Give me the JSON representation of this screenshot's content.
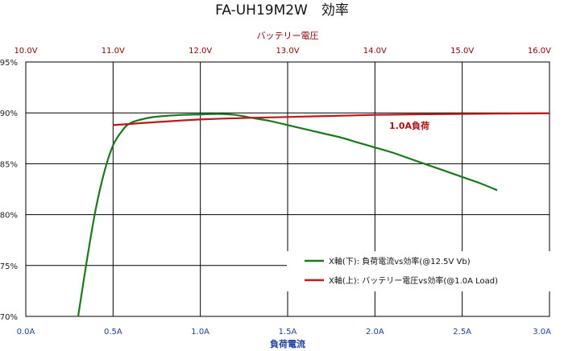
{
  "chart_data": {
    "type": "line",
    "title": "FA-UH19M2W　効率",
    "x_bottom": {
      "label": "負荷電流",
      "ticks": [
        "0.0A",
        "0.5A",
        "1.0A",
        "1.5A",
        "2.0A",
        "2.5A",
        "3.0A"
      ],
      "range": [
        0,
        3
      ]
    },
    "x_top": {
      "label": "バッテリー電圧",
      "ticks": [
        "10.0V",
        "11.0V",
        "12.0V",
        "13.0V",
        "14.0V",
        "15.0V",
        "16.0V"
      ],
      "range": [
        10,
        16
      ]
    },
    "y": {
      "ticks": [
        "95%",
        "90%",
        "85%",
        "80%",
        "75%",
        "70%"
      ],
      "range": [
        70,
        95
      ]
    },
    "grid": true,
    "legend_position": "bottom-right",
    "annotation": "1.0A負荷",
    "series": [
      {
        "name": "X軸(下): 負荷電流vs効率(@12.5V Vb)",
        "axis": "bottom",
        "color": "#1a7a1a",
        "x": [
          0.3,
          0.35,
          0.4,
          0.45,
          0.5,
          0.55,
          0.6,
          0.7,
          0.8,
          0.9,
          1.0,
          1.1,
          1.2,
          1.3,
          1.4,
          1.5,
          1.6,
          1.7,
          1.8,
          1.9,
          2.0,
          2.1,
          2.2,
          2.3,
          2.4,
          2.5,
          2.6,
          2.7
        ],
        "y": [
          70,
          75.5,
          80.5,
          84.2,
          86.8,
          88.2,
          89.0,
          89.5,
          89.7,
          89.8,
          89.85,
          89.9,
          89.8,
          89.5,
          89.2,
          88.8,
          88.4,
          88.0,
          87.6,
          87.1,
          86.6,
          86.1,
          85.5,
          84.9,
          84.3,
          83.7,
          83.1,
          82.4
        ]
      },
      {
        "name": "X軸(上): バッテリー電圧vs効率(@1.0A Load)",
        "axis": "top",
        "color": "#c01818",
        "x": [
          11.0,
          12.0,
          13.0,
          14.0,
          15.0,
          16.0
        ],
        "y": [
          88.8,
          89.35,
          89.6,
          89.8,
          89.9,
          89.95
        ]
      }
    ]
  }
}
